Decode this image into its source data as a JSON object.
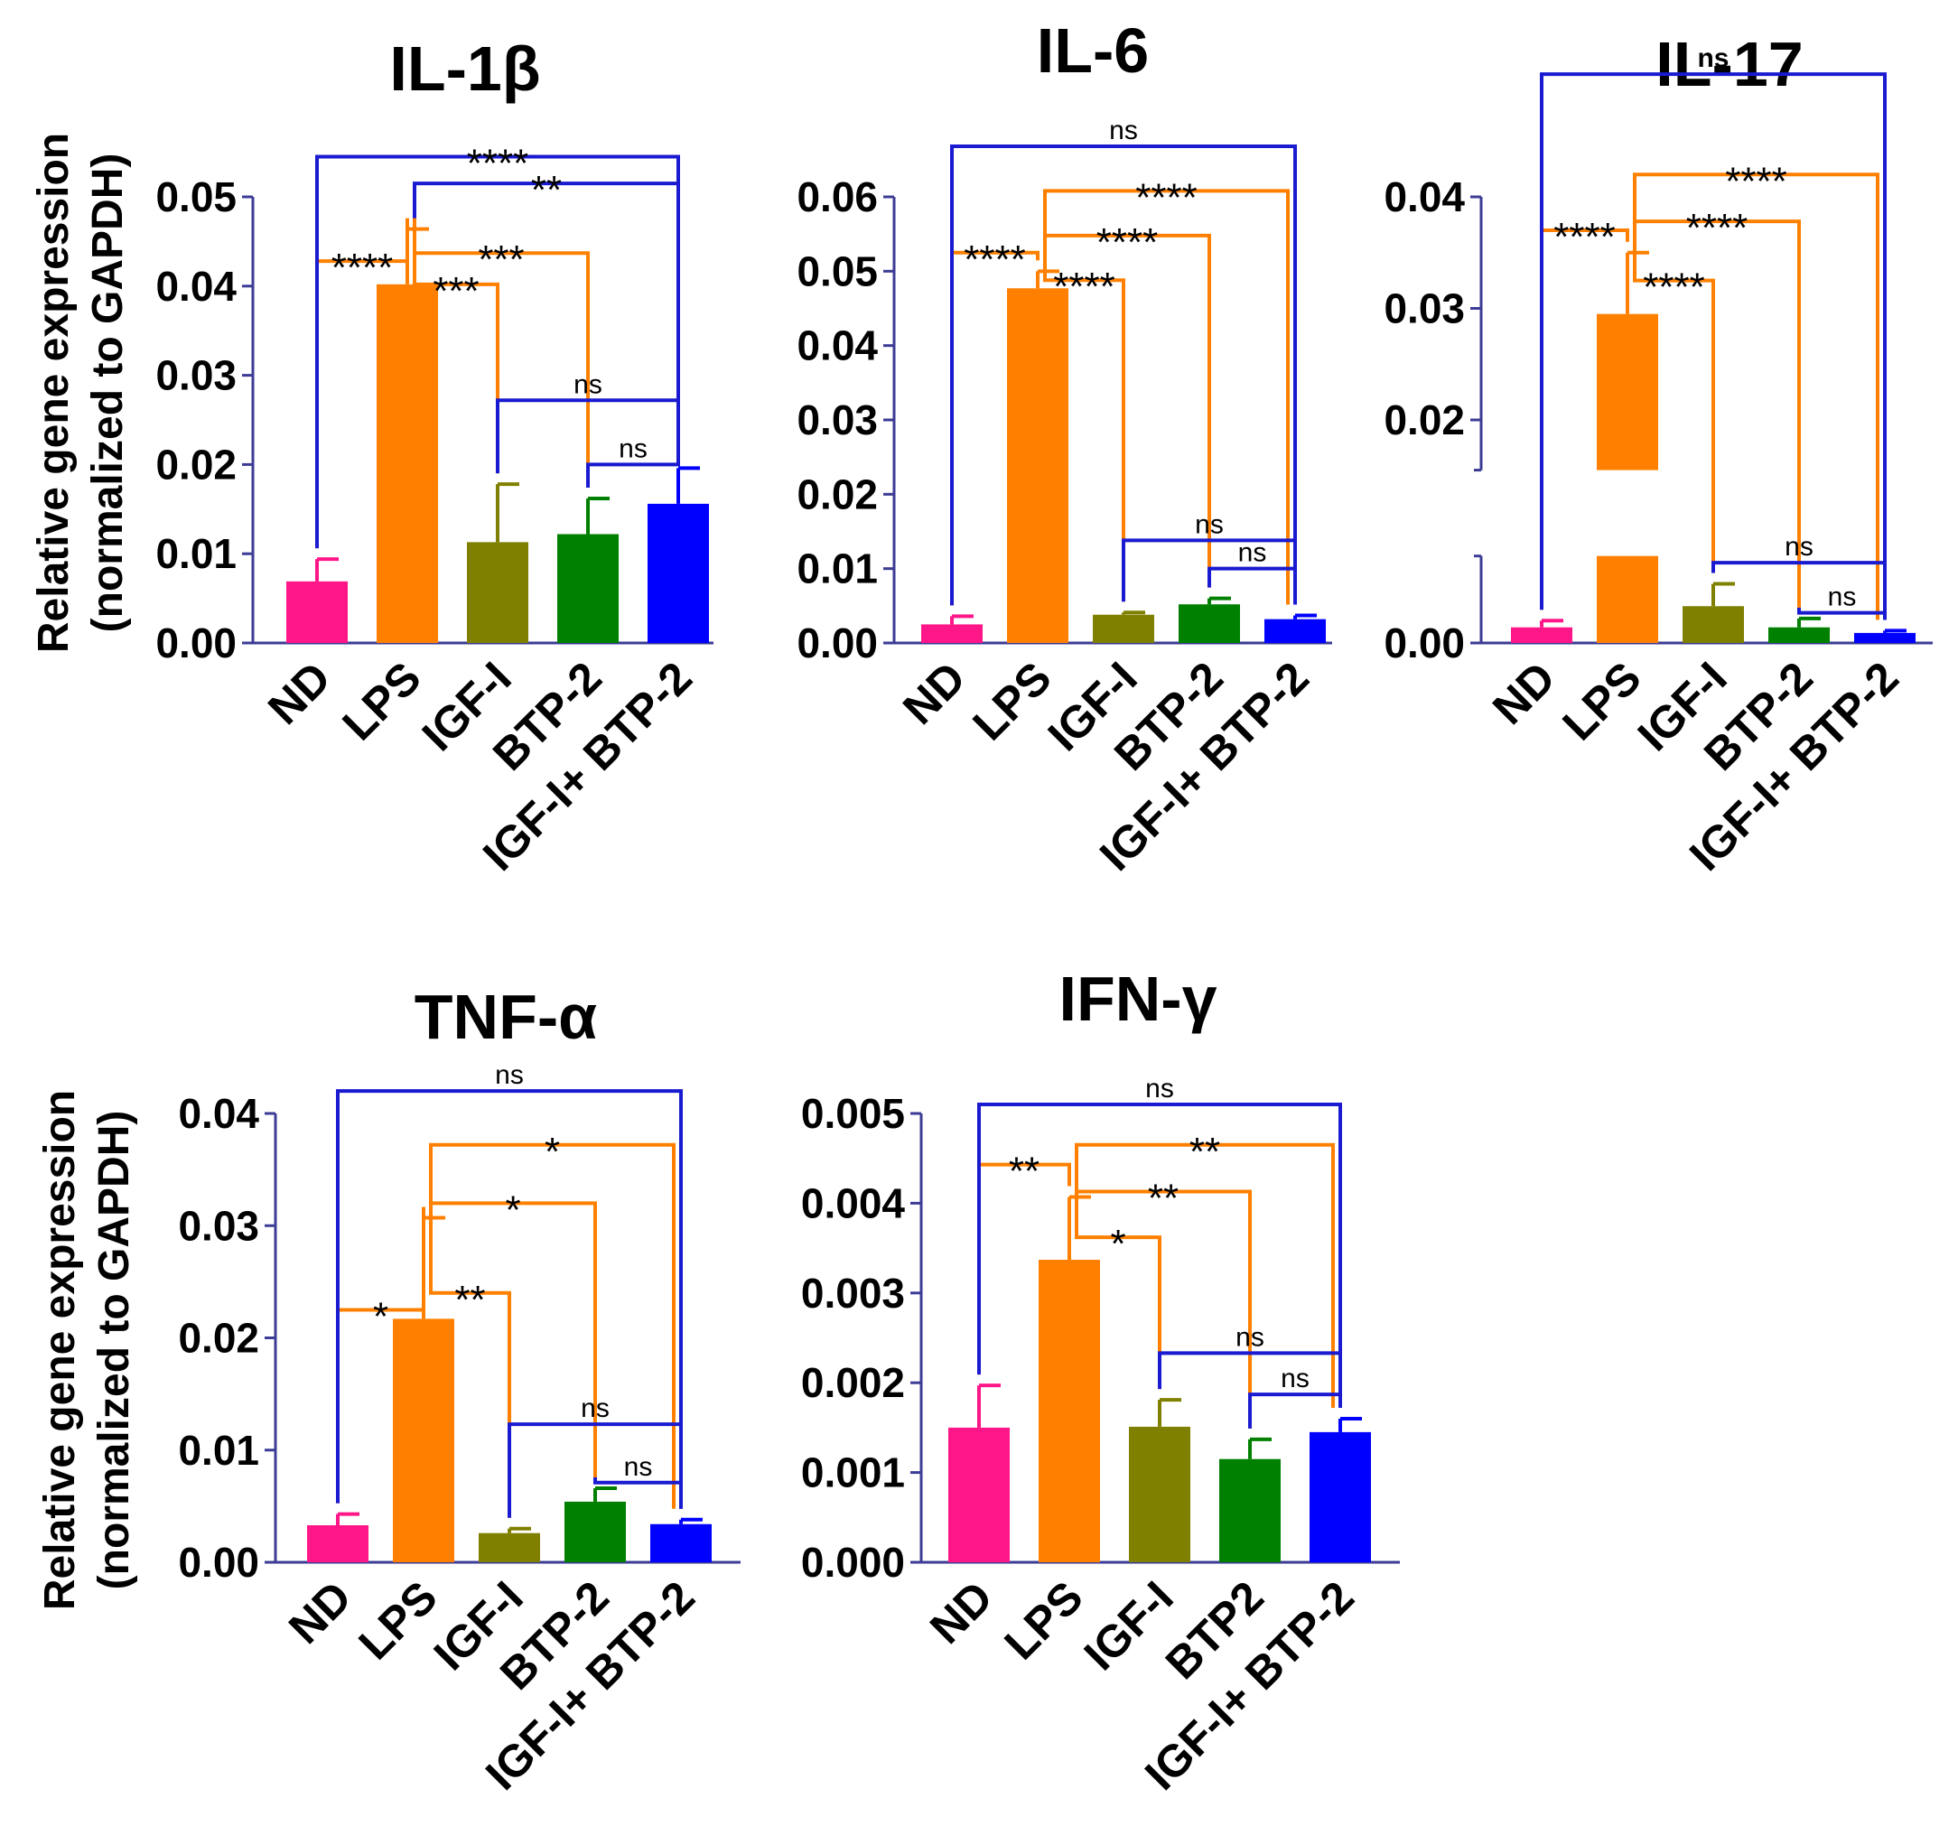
{
  "ylabel": {
    "line1": "Relative gene expression",
    "line2": "(normalized to GAPDH)"
  },
  "colors": {
    "ND": "#ff1688",
    "LPS": "#ff8000",
    "IGF-I": "#808000",
    "BTP-2": "#008000",
    "IGF-I+ BTP-2": "#0000ff",
    "bracket_orange": "#ff8000",
    "bracket_blue": "#1a1ad0",
    "axis": "#3c3c96"
  },
  "chart_data": [
    {
      "id": "il1b",
      "type": "bar",
      "title": "IL-1β",
      "categories": [
        "ND",
        "LPS",
        "IGF-I",
        "BTP-2",
        "IGF-I+ BTP-2"
      ],
      "values": [
        0.0069,
        0.0402,
        0.0113,
        0.0122,
        0.0156
      ],
      "errors": [
        0.0025,
        0.0062,
        0.0065,
        0.004,
        0.004
      ],
      "ylim": [
        0,
        0.05
      ],
      "yticks": [
        "0.00",
        "0.01",
        "0.02",
        "0.03",
        "0.04",
        "0.05"
      ],
      "ytick_values": [
        0,
        0.01,
        0.02,
        0.03,
        0.04,
        0.05
      ],
      "comparisons": [
        {
          "a": 0,
          "b": 1,
          "label": "****",
          "color": "orange",
          "level": 0.0428
        },
        {
          "a": 1,
          "b": 2,
          "label": "***",
          "color": "orange",
          "level": 0.0402
        },
        {
          "a": 1,
          "b": 3,
          "label": "***",
          "color": "orange",
          "level": 0.0437
        },
        {
          "a": 1,
          "b": 4,
          "label": "**",
          "color": "blue",
          "level": 0.0515
        },
        {
          "a": 0,
          "b": 4,
          "label": "****",
          "color": "blue",
          "level": 0.0545
        },
        {
          "a": 2,
          "b": 4,
          "label": "ns",
          "color": "blue",
          "level": 0.0272
        },
        {
          "a": 3,
          "b": 4,
          "label": "ns",
          "color": "blue",
          "level": 0.02
        }
      ]
    },
    {
      "id": "il6",
      "type": "bar",
      "title": "IL-6",
      "categories": [
        "ND",
        "LPS",
        "IGF-I",
        "BTP-2",
        "IGF-I+ BTP-2"
      ],
      "values": [
        0.0025,
        0.0477,
        0.0038,
        0.0052,
        0.0032
      ],
      "errors": [
        0.0011,
        0.0023,
        0.0003,
        0.0008,
        0.0005
      ],
      "ylim": [
        0,
        0.06
      ],
      "yticks": [
        "0.00",
        "0.01",
        "0.02",
        "0.03",
        "0.04",
        "0.05",
        "0.06"
      ],
      "ytick_values": [
        0,
        0.01,
        0.02,
        0.03,
        0.04,
        0.05,
        0.06
      ],
      "comparisons": [
        {
          "a": 0,
          "b": 1,
          "label": "****",
          "color": "orange",
          "level": 0.0525
        },
        {
          "a": 1,
          "b": 2,
          "label": "****",
          "color": "orange",
          "level": 0.0488
        },
        {
          "a": 1,
          "b": 3,
          "label": "****",
          "color": "orange",
          "level": 0.0548
        },
        {
          "a": 1,
          "b": 4,
          "label": "****",
          "color": "orange",
          "level": 0.0608
        },
        {
          "a": 0,
          "b": 4,
          "label": "ns",
          "color": "blue",
          "level": 0.0668
        },
        {
          "a": 2,
          "b": 4,
          "label": "ns",
          "color": "blue",
          "level": 0.0138
        },
        {
          "a": 3,
          "b": 4,
          "label": "ns",
          "color": "blue",
          "level": 0.01
        }
      ]
    },
    {
      "id": "il17",
      "type": "bar",
      "title": "IL-17",
      "categories": [
        "ND",
        "LPS",
        "IGF-I",
        "BTP-2",
        "IGF-I+ BTP-2"
      ],
      "values": [
        0.0014,
        0.0295,
        0.0033,
        0.0014,
        0.0009
      ],
      "errors": [
        0.0006,
        0.0055,
        0.002,
        0.0008,
        0.0002
      ],
      "ylim": [
        0,
        0.04
      ],
      "axis_break": [
        0.0078,
        0.0155
      ],
      "yticks": [
        "0.00",
        "0.02",
        "0.03",
        "0.04"
      ],
      "ytick_values": [
        0,
        0.02,
        0.03,
        0.04
      ],
      "comparisons": [
        {
          "a": 0,
          "b": 1,
          "label": "****",
          "color": "orange",
          "level": 0.037
        },
        {
          "a": 1,
          "b": 2,
          "label": "****",
          "color": "orange",
          "level": 0.0325
        },
        {
          "a": 1,
          "b": 3,
          "label": "****",
          "color": "orange",
          "level": 0.0378
        },
        {
          "a": 1,
          "b": 4,
          "label": "****",
          "color": "orange",
          "level": 0.042
        },
        {
          "a": 0,
          "b": 4,
          "label": "ns",
          "color": "blue",
          "level": 0.051
        },
        {
          "a": 2,
          "b": 4,
          "label": "ns",
          "color": "blue",
          "level": 0.0072
        },
        {
          "a": 3,
          "b": 4,
          "label": "ns",
          "color": "blue",
          "level": 0.0027
        }
      ]
    },
    {
      "id": "tnfa",
      "type": "bar",
      "title": "TNF-α",
      "categories": [
        "ND",
        "LPS",
        "IGF-I",
        "BTP-2",
        "IGF-I+ BTP-2"
      ],
      "values": [
        0.0033,
        0.0217,
        0.0026,
        0.0054,
        0.0034
      ],
      "errors": [
        0.001,
        0.009,
        0.0004,
        0.0012,
        0.0004
      ],
      "ylim": [
        0,
        0.04
      ],
      "yticks": [
        "0.00",
        "0.01",
        "0.02",
        "0.03",
        "0.04"
      ],
      "ytick_values": [
        0,
        0.01,
        0.02,
        0.03,
        0.04
      ],
      "comparisons": [
        {
          "a": 0,
          "b": 1,
          "label": "*",
          "color": "orange",
          "level": 0.0225
        },
        {
          "a": 1,
          "b": 2,
          "label": "**",
          "color": "orange",
          "level": 0.024
        },
        {
          "a": 1,
          "b": 3,
          "label": "*",
          "color": "orange",
          "level": 0.032
        },
        {
          "a": 1,
          "b": 4,
          "label": "*",
          "color": "orange",
          "level": 0.0372
        },
        {
          "a": 0,
          "b": 4,
          "label": "ns",
          "color": "blue",
          "level": 0.042
        },
        {
          "a": 2,
          "b": 4,
          "label": "ns",
          "color": "blue",
          "level": 0.0123
        },
        {
          "a": 3,
          "b": 4,
          "label": "ns",
          "color": "blue",
          "level": 0.0071
        }
      ]
    },
    {
      "id": "ifng",
      "type": "bar",
      "title": "IFN-γ",
      "categories": [
        "ND",
        "LPS",
        "IGF-I",
        "BTP2",
        "IGF-I+ BTP-2"
      ],
      "values": [
        0.0015,
        0.00337,
        0.00151,
        0.00115,
        0.00145
      ],
      "errors": [
        0.00047,
        0.0007,
        0.0003,
        0.00022,
        0.00015
      ],
      "ylim": [
        0,
        0.005
      ],
      "yticks": [
        "0.000",
        "0.001",
        "0.002",
        "0.003",
        "0.004",
        "0.005"
      ],
      "ytick_values": [
        0,
        0.001,
        0.002,
        0.003,
        0.004,
        0.005
      ],
      "comparisons": [
        {
          "a": 0,
          "b": 1,
          "label": "**",
          "color": "orange",
          "level": 0.00443
        },
        {
          "a": 1,
          "b": 2,
          "label": "*",
          "color": "orange",
          "level": 0.00362
        },
        {
          "a": 1,
          "b": 3,
          "label": "**",
          "color": "orange",
          "level": 0.00413
        },
        {
          "a": 1,
          "b": 4,
          "label": "**",
          "color": "orange",
          "level": 0.00465
        },
        {
          "a": 0,
          "b": 4,
          "label": "ns",
          "color": "blue",
          "level": 0.0051
        },
        {
          "a": 2,
          "b": 4,
          "label": "ns",
          "color": "blue",
          "level": 0.00233
        },
        {
          "a": 3,
          "b": 4,
          "label": "ns",
          "color": "blue",
          "level": 0.00187
        }
      ]
    }
  ]
}
